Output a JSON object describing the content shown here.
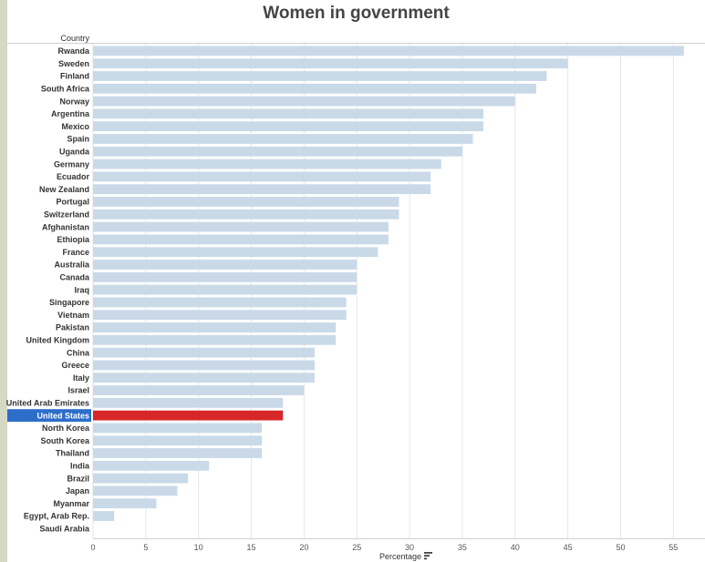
{
  "chart_data": {
    "type": "bar",
    "orientation": "horizontal",
    "title": "Women in government",
    "row_header": "Country",
    "xlabel": "Percentage",
    "xlim": [
      0,
      58
    ],
    "xticks": [
      0,
      5,
      10,
      15,
      20,
      25,
      30,
      35,
      40,
      45,
      50,
      55
    ],
    "categories": [
      "Rwanda",
      "Sweden",
      "Finland",
      "South Africa",
      "Norway",
      "Argentina",
      "Mexico",
      "Spain",
      "Uganda",
      "Germany",
      "Ecuador",
      "New Zealand",
      "Portugal",
      "Switzerland",
      "Afghanistan",
      "Ethiopia",
      "France",
      "Australia",
      "Canada",
      "Iraq",
      "Singapore",
      "Vietnam",
      "Pakistan",
      "United Kingdom",
      "China",
      "Greece",
      "Italy",
      "Israel",
      "United Arab Emirates",
      "United States",
      "North Korea",
      "South Korea",
      "Thailand",
      "India",
      "Brazil",
      "Japan",
      "Myanmar",
      "Egypt, Arab Rep.",
      "Saudi Arabia"
    ],
    "values": [
      56,
      45,
      43,
      42,
      40,
      37,
      37,
      36,
      35,
      33,
      32,
      32,
      29,
      29,
      28,
      28,
      27,
      25,
      25,
      25,
      24,
      24,
      23,
      23,
      21,
      21,
      21,
      20,
      18,
      18,
      16,
      16,
      16,
      11,
      9,
      8,
      6,
      2,
      0
    ],
    "highlighted": "United States",
    "sort_icon": "sort-descending-icon",
    "colors": {
      "bar": "#c9d9e8",
      "highlight_bar": "#d62728",
      "highlight_label_bg": "#2d6ec9",
      "gridline": "#e6e6e6"
    }
  }
}
